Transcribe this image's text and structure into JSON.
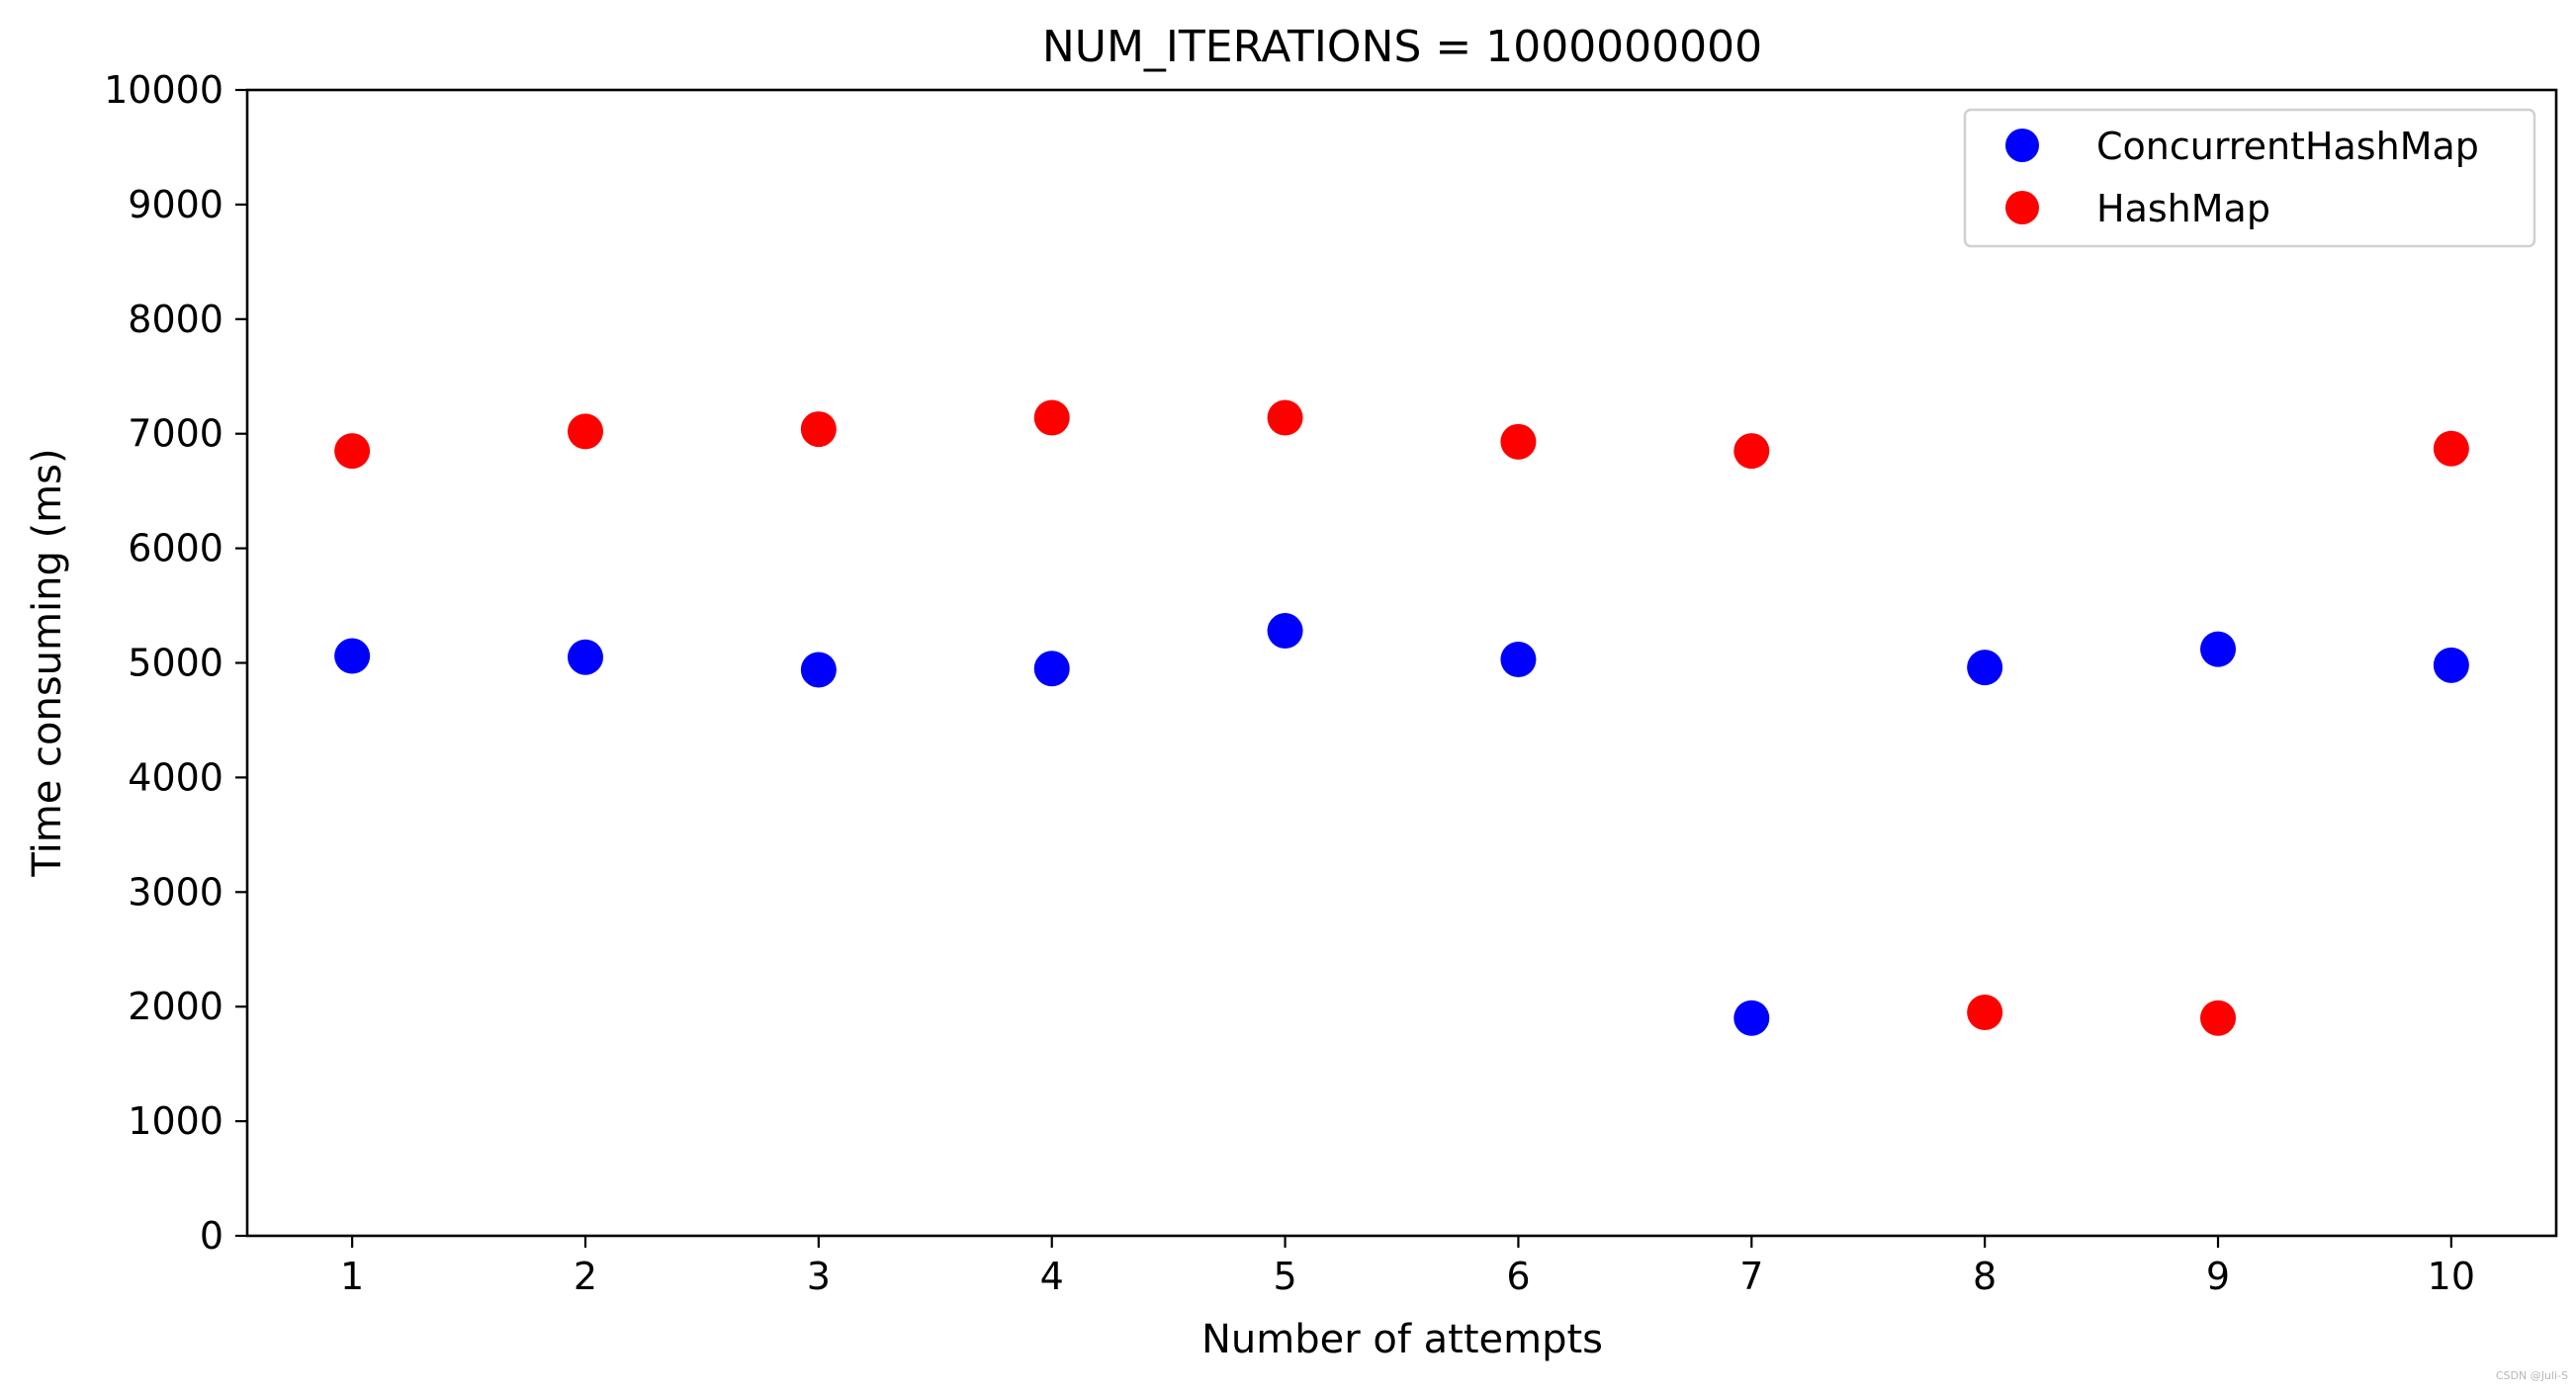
{
  "chart_data": {
    "type": "scatter",
    "title": "NUM_ITERATIONS = 1000000000",
    "xlabel": "Number of attempts",
    "ylabel": "Time consuming (ms)",
    "x": [
      1,
      2,
      3,
      4,
      5,
      6,
      7,
      8,
      9,
      10
    ],
    "x_ticks": [
      "1",
      "2",
      "3",
      "4",
      "5",
      "6",
      "7",
      "8",
      "9",
      "10"
    ],
    "y_ticks": [
      "0",
      "1000",
      "2000",
      "3000",
      "4000",
      "5000",
      "6000",
      "7000",
      "8000",
      "9000",
      "10000"
    ],
    "xlim": [
      0.55,
      10.45
    ],
    "ylim": [
      0,
      10000
    ],
    "grid": false,
    "legend_position": "top-right",
    "series": [
      {
        "name": "ConcurrentHashMap",
        "color": "#0000ff",
        "points": [
          [
            1,
            5060
          ],
          [
            2,
            5050
          ],
          [
            3,
            4940
          ],
          [
            4,
            4950
          ],
          [
            5,
            5280
          ],
          [
            6,
            5030
          ],
          [
            7,
            1900
          ],
          [
            8,
            4960
          ],
          [
            9,
            5120
          ],
          [
            10,
            4980
          ]
        ]
      },
      {
        "name": "HashMap",
        "color": "#ff0000",
        "points": [
          [
            1,
            6850
          ],
          [
            2,
            7020
          ],
          [
            3,
            7040
          ],
          [
            4,
            7140
          ],
          [
            5,
            7140
          ],
          [
            6,
            6930
          ],
          [
            7,
            6850
          ],
          [
            8,
            1950
          ],
          [
            9,
            1900
          ],
          [
            10,
            6870
          ]
        ]
      }
    ]
  },
  "watermark": "CSDN @Juli-S"
}
